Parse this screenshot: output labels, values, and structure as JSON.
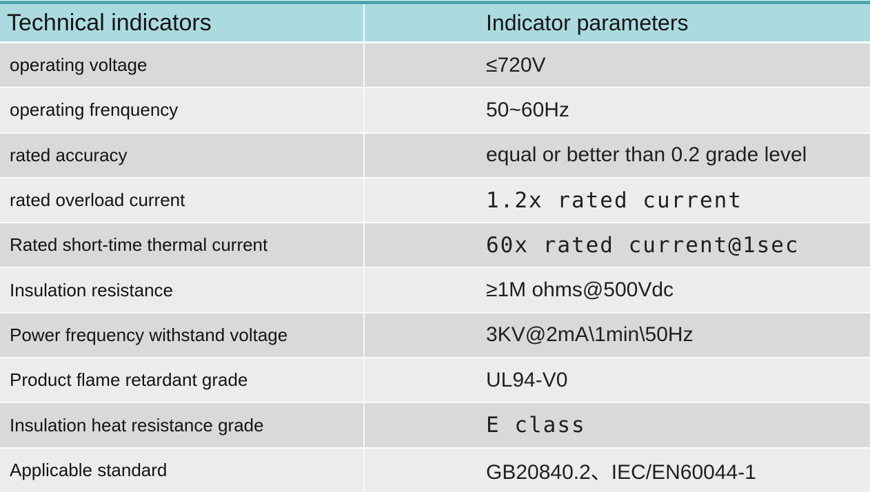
{
  "table": {
    "columns": [
      {
        "label": "Technical indicators"
      },
      {
        "label": "Indicator parameters"
      }
    ],
    "rows": [
      {
        "indicator": "operating voltage",
        "parameter": "≤720V",
        "mono": false
      },
      {
        "indicator": "operating frenquency",
        "parameter": "50~60Hz",
        "mono": false
      },
      {
        "indicator": "rated accuracy",
        "parameter": "equal or better than 0.2 grade level",
        "mono": false
      },
      {
        "indicator": "rated overload current",
        "parameter": "1.2x rated current",
        "mono": true
      },
      {
        "indicator": "Rated short-time thermal current",
        "parameter": "60x rated current@1sec",
        "mono": true
      },
      {
        "indicator": "Insulation resistance",
        "parameter": "≥1M ohms@500Vdc",
        "mono": false
      },
      {
        "indicator": "Power frequency withstand voltage",
        "parameter": "3KV@2mA\\1min\\50Hz",
        "mono": false
      },
      {
        "indicator": "Product flame retardant grade",
        "parameter": "UL94-V0",
        "mono": false
      },
      {
        "indicator": "Insulation heat resistance grade",
        "parameter": "E class",
        "mono": true
      },
      {
        "indicator": "Applicable standard",
        "parameter": "GB20840.2、IEC/EN60044-1",
        "mono": false
      }
    ],
    "colors": {
      "header_background": "#abdbdf",
      "header_top_border": "#4aa5aa",
      "row_dark": "#d9d9d9",
      "row_light": "#ececec",
      "separator": "#fbfbfb",
      "text": "#1c1c1c"
    }
  }
}
